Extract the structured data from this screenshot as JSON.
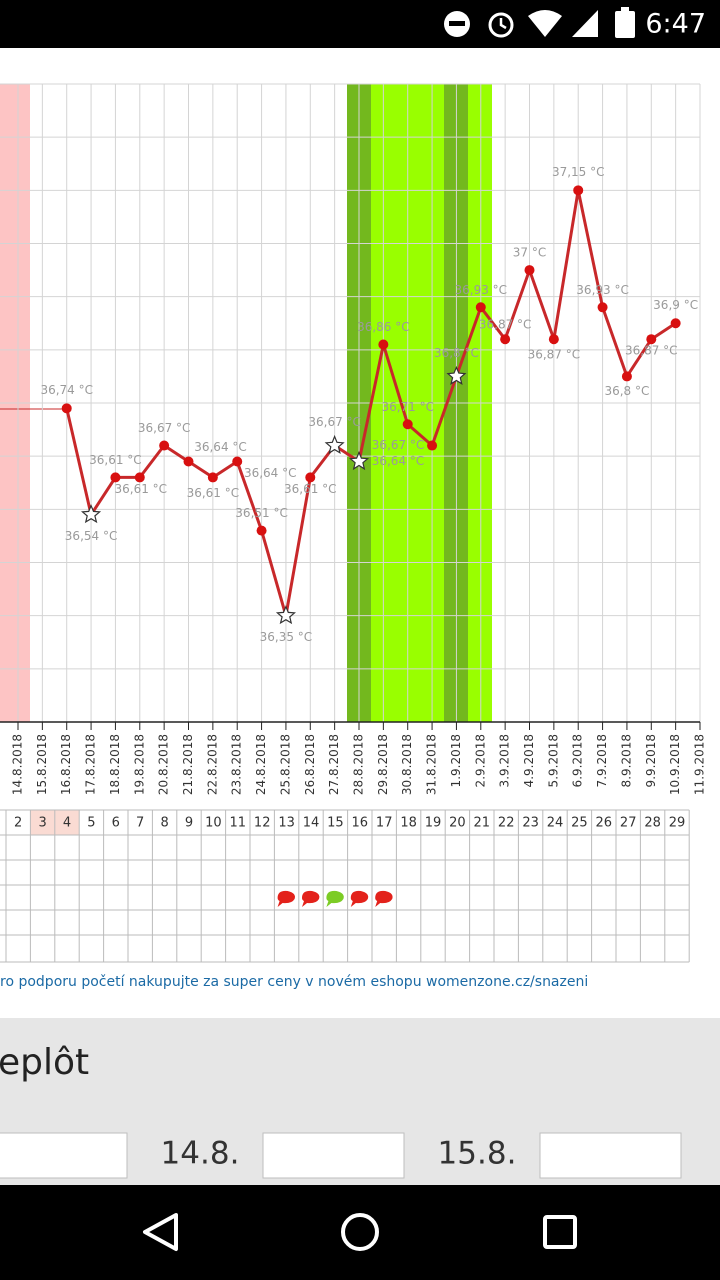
{
  "status_bar": {
    "time": "6:47"
  },
  "chart_data": {
    "type": "line",
    "x": [
      "14.8.2018",
      "15.8.2018",
      "16.8.2018",
      "17.8.2018",
      "18.8.2018",
      "19.8.2018",
      "20.8.2018",
      "21.8.2018",
      "22.8.2018",
      "23.8.2018",
      "24.8.2018",
      "25.8.2018",
      "26.8.2018",
      "27.8.2018",
      "28.8.2018",
      "29.8.2018",
      "30.8.2018",
      "31.8.2018",
      "1.9.2018",
      "2.9.2018",
      "3.9.2018",
      "4.9.2018",
      "5.9.2018",
      "6.9.2018",
      "7.9.2018",
      "8.9.2018",
      "9.9.2018",
      "10.9.2018",
      "11.9.2018"
    ],
    "values": [
      null,
      null,
      36.74,
      36.54,
      36.61,
      36.61,
      36.67,
      36.64,
      36.61,
      36.64,
      36.51,
      36.35,
      36.61,
      36.67,
      36.64,
      36.86,
      36.71,
      36.67,
      36.8,
      36.93,
      36.87,
      37,
      36.87,
      37.15,
      36.93,
      36.8,
      36.87,
      36.9,
      null
    ],
    "value_labels": [
      null,
      null,
      "36,74 °C",
      "36,54 °C",
      "36,61 °C",
      "36,61 °C",
      "36,67 °C",
      "36,64 °C",
      "36,61 °C",
      "36,64 °C",
      "36,51 °C",
      "36,35 °C",
      "36,61 °C",
      "36,67 °C",
      "36,64 °C",
      "36,86 °C",
      "36,71 °C",
      "36,67 °C",
      "36,8 °C",
      "36,93 °C",
      "36,87 °C",
      "37 °C",
      "36,87 °C",
      "37,15 °C",
      "36,93 °C",
      "36,8 °C",
      "36,87 °C",
      "36,9 °C",
      null
    ],
    "markers": [
      null,
      null,
      "circle",
      "star",
      "circle",
      "circle",
      "circle",
      "circle",
      "circle",
      "circle",
      "circle",
      "star",
      "circle",
      "star",
      "star",
      "circle",
      "circle",
      "circle",
      "star",
      "circle",
      "circle",
      "circle",
      "circle",
      "circle",
      "circle",
      "circle",
      "circle",
      "circle",
      null
    ],
    "color": "#c8282a",
    "ylim": [
      36.15,
      37.35
    ],
    "yticks": [
      36.25,
      36.35,
      36.45,
      36.55,
      36.65,
      36.75,
      36.85,
      36.95,
      37.05,
      37.15,
      37.25,
      37.35
    ],
    "grid": true
  },
  "cycle_table": {
    "days": [
      2,
      3,
      4,
      5,
      6,
      7,
      8,
      9,
      10,
      11,
      12,
      13,
      14,
      15,
      16,
      17,
      18,
      19,
      20,
      21,
      22,
      23,
      24,
      25,
      26,
      27,
      28,
      29
    ],
    "highlighted": [
      false,
      true,
      true,
      false,
      false,
      false,
      false,
      false,
      false,
      false,
      false,
      false,
      false,
      false,
      false,
      false,
      false,
      false,
      false,
      false,
      false,
      false,
      false,
      false,
      false,
      false,
      false,
      false
    ],
    "drops": [
      null,
      null,
      null,
      null,
      null,
      null,
      null,
      null,
      null,
      null,
      null,
      "#e3221b",
      "#e3221b",
      "#7ccc25",
      "#e3221b",
      "#e3221b",
      null,
      null,
      null,
      null,
      null,
      null,
      null,
      null,
      null,
      null,
      null,
      null
    ]
  },
  "promo_text": "ro podporu početí nakupujte za super ceny v novém eshopu womenzone.cz/snazeni",
  "section_title": "eplôt",
  "date_inputs": [
    "14.8.",
    "15.8."
  ]
}
